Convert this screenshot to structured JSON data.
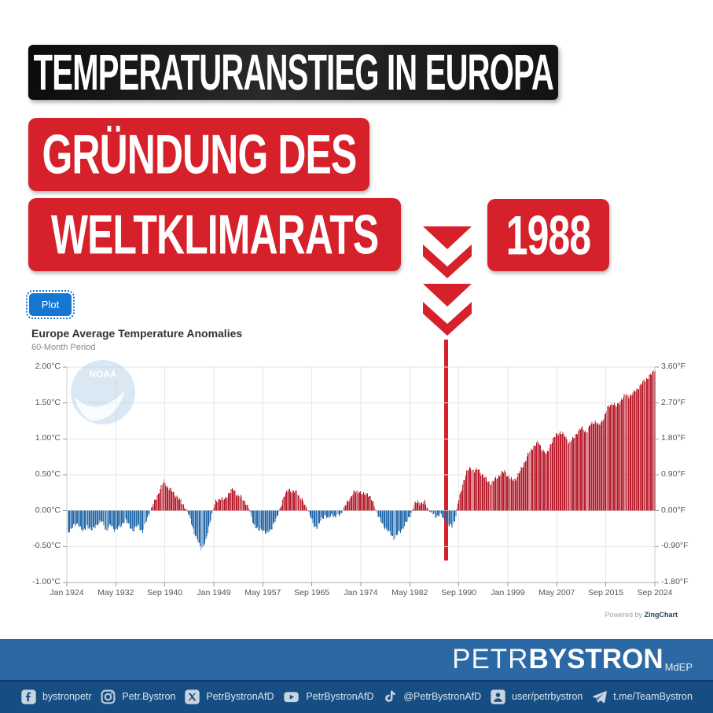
{
  "header": {
    "title": "TEMPERATURANSTIEG IN EUROPA"
  },
  "callouts": {
    "line1": "GRÜNDUNG DES",
    "line2": "WELTKLIMARATS",
    "year": "1988"
  },
  "plot_button": {
    "label": "Plot"
  },
  "chart": {
    "title": "Europe Average Temperature Anomalies",
    "subtitle": "60-Month Period",
    "watermark": "NOAA",
    "powered_prefix": "Powered by",
    "powered_brand": "ZingChart"
  },
  "chart_data": {
    "type": "area",
    "title": "Europe Average Temperature Anomalies",
    "subtitle": "60-Month Period",
    "x_ticks": [
      "Jan 1924",
      "May 1932",
      "Sep 1940",
      "Jan 1949",
      "May 1957",
      "Sep 1965",
      "Jan 1974",
      "May 1982",
      "Sep 1990",
      "Jan 1999",
      "May 2007",
      "Sep 2015",
      "Sep 2024"
    ],
    "y_left_ticks": [
      "2.00°C",
      "1.50°C",
      "1.00°C",
      "0.50°C",
      "0.00°C",
      "-0.50°C",
      "-1.00°C"
    ],
    "y_right_ticks": [
      "3.60°F",
      "2.70°F",
      "1.80°F",
      "0.90°F",
      "0.00°F",
      "-0.90°F",
      "-1.80°F"
    ],
    "y_ticks_c": [
      2.0,
      1.5,
      1.0,
      0.5,
      0.0,
      -0.5,
      -1.0
    ],
    "ylim_c": [
      -1.0,
      2.0
    ],
    "x_range_years": [
      1924.0,
      2024.75
    ],
    "grid": true,
    "marker_year": 1989.0,
    "colors": {
      "positive": "#b71c2c",
      "negative": "#2569a8",
      "marker": "#d6212b",
      "grid": "#e6e6e6",
      "axis": "#aaaaaa"
    },
    "anchors_year_anomaly_c": [
      [
        1924.0,
        -0.33
      ],
      [
        1925,
        -0.22
      ],
      [
        1926,
        -0.18
      ],
      [
        1926.8,
        -0.3
      ],
      [
        1927.5,
        -0.2
      ],
      [
        1928.3,
        -0.28
      ],
      [
        1929,
        -0.2
      ],
      [
        1930,
        -0.15
      ],
      [
        1930.8,
        -0.28
      ],
      [
        1931.5,
        -0.2
      ],
      [
        1932.3,
        -0.27
      ],
      [
        1933.2,
        -0.22
      ],
      [
        1934,
        -0.12
      ],
      [
        1934.6,
        -0.2
      ],
      [
        1935.4,
        -0.28
      ],
      [
        1936.2,
        -0.2
      ],
      [
        1937,
        -0.3
      ],
      [
        1937.6,
        -0.15
      ],
      [
        1938.2,
        -0.02
      ],
      [
        1939,
        0.12
      ],
      [
        1940,
        0.3
      ],
      [
        1940.7,
        0.42
      ],
      [
        1941.3,
        0.32
      ],
      [
        1942,
        0.28
      ],
      [
        1943,
        0.18
      ],
      [
        1944,
        0.08
      ],
      [
        1944.6,
        0.0
      ],
      [
        1945.3,
        -0.15
      ],
      [
        1946,
        -0.35
      ],
      [
        1947,
        -0.52
      ],
      [
        1947.8,
        -0.45
      ],
      [
        1948.4,
        -0.2
      ],
      [
        1948.9,
        -0.02
      ],
      [
        1949.5,
        0.12
      ],
      [
        1950.3,
        0.18
      ],
      [
        1951,
        0.15
      ],
      [
        1951.8,
        0.25
      ],
      [
        1952.5,
        0.3
      ],
      [
        1953.2,
        0.22
      ],
      [
        1954,
        0.18
      ],
      [
        1954.8,
        0.1
      ],
      [
        1955.4,
        -0.02
      ],
      [
        1956,
        -0.18
      ],
      [
        1956.8,
        -0.28
      ],
      [
        1957.5,
        -0.25
      ],
      [
        1958.2,
        -0.33
      ],
      [
        1959,
        -0.25
      ],
      [
        1960,
        -0.1
      ],
      [
        1960.6,
        0.05
      ],
      [
        1961.3,
        0.2
      ],
      [
        1962,
        0.32
      ],
      [
        1962.6,
        0.25
      ],
      [
        1963.3,
        0.28
      ],
      [
        1964,
        0.18
      ],
      [
        1964.7,
        0.1
      ],
      [
        1965.2,
        0.03
      ],
      [
        1965.7,
        -0.08
      ],
      [
        1966.3,
        -0.2
      ],
      [
        1967,
        -0.24
      ],
      [
        1967.6,
        -0.12
      ],
      [
        1968.2,
        -0.06
      ],
      [
        1968.8,
        -0.12
      ],
      [
        1969.4,
        -0.04
      ],
      [
        1970,
        -0.1
      ],
      [
        1970.6,
        -0.06
      ],
      [
        1971.2,
        -0.02
      ],
      [
        1971.8,
        0.08
      ],
      [
        1972.5,
        0.18
      ],
      [
        1973.3,
        0.26
      ],
      [
        1974,
        0.28
      ],
      [
        1974.8,
        0.22
      ],
      [
        1975.5,
        0.25
      ],
      [
        1976.2,
        0.15
      ],
      [
        1976.8,
        0.05
      ],
      [
        1977.4,
        -0.08
      ],
      [
        1978,
        -0.18
      ],
      [
        1979,
        -0.28
      ],
      [
        1980,
        -0.38
      ],
      [
        1980.8,
        -0.32
      ],
      [
        1981.5,
        -0.25
      ],
      [
        1982.3,
        -0.15
      ],
      [
        1982.9,
        -0.05
      ],
      [
        1983.5,
        0.08
      ],
      [
        1984.2,
        0.13
      ],
      [
        1984.8,
        0.1
      ],
      [
        1985.3,
        0.12
      ],
      [
        1985.9,
        0.02
      ],
      [
        1986.5,
        -0.04
      ],
      [
        1987.2,
        -0.08
      ],
      [
        1988,
        -0.05
      ],
      [
        1988.6,
        -0.12
      ],
      [
        1989.3,
        -0.2
      ],
      [
        1990,
        -0.22
      ],
      [
        1990.6,
        -0.1
      ],
      [
        1991,
        0.1
      ],
      [
        1991.5,
        0.25
      ],
      [
        1992,
        0.42
      ],
      [
        1992.6,
        0.55
      ],
      [
        1993.2,
        0.6
      ],
      [
        1993.8,
        0.55
      ],
      [
        1994.5,
        0.58
      ],
      [
        1995.2,
        0.5
      ],
      [
        1996,
        0.42
      ],
      [
        1996.8,
        0.38
      ],
      [
        1997.5,
        0.45
      ],
      [
        1998.2,
        0.5
      ],
      [
        1999,
        0.55
      ],
      [
        1999.6,
        0.48
      ],
      [
        2000.3,
        0.42
      ],
      [
        2001,
        0.45
      ],
      [
        2002,
        0.6
      ],
      [
        2003,
        0.78
      ],
      [
        2004,
        0.9
      ],
      [
        2004.8,
        0.95
      ],
      [
        2005.5,
        0.85
      ],
      [
        2006.2,
        0.78
      ],
      [
        2007,
        0.95
      ],
      [
        2007.8,
        1.05
      ],
      [
        2008.5,
        1.1
      ],
      [
        2009.2,
        1.05
      ],
      [
        2010,
        0.95
      ],
      [
        2010.8,
        1.0
      ],
      [
        2011.5,
        1.1
      ],
      [
        2012.2,
        1.15
      ],
      [
        2013,
        1.1
      ],
      [
        2013.8,
        1.2
      ],
      [
        2014.5,
        1.25
      ],
      [
        2015.2,
        1.18
      ],
      [
        2016,
        1.3
      ],
      [
        2016.8,
        1.45
      ],
      [
        2017.5,
        1.5
      ],
      [
        2018.2,
        1.45
      ],
      [
        2019,
        1.55
      ],
      [
        2019.8,
        1.62
      ],
      [
        2020.5,
        1.6
      ],
      [
        2021.2,
        1.65
      ],
      [
        2022,
        1.72
      ],
      [
        2022.8,
        1.8
      ],
      [
        2023.5,
        1.85
      ],
      [
        2024.2,
        1.9
      ],
      [
        2024.75,
        1.97
      ]
    ]
  },
  "brand": {
    "first": "PETR",
    "last": "BYSTRON",
    "suffix": "MdEP"
  },
  "footer": {
    "items": [
      {
        "icon": "facebook-icon",
        "label": "bystronpetr"
      },
      {
        "icon": "instagram-icon",
        "label": "Petr.Bystron"
      },
      {
        "icon": "x-icon",
        "label": "PetrBystronAfD"
      },
      {
        "icon": "youtube-icon",
        "label": "PetrBystronAfD"
      },
      {
        "icon": "tiktok-icon",
        "label": "@PetrBystronAfD"
      },
      {
        "icon": "user-icon",
        "label": "user/petrbystron"
      },
      {
        "icon": "telegram-icon",
        "label": "t.me/TeamBystron"
      }
    ]
  }
}
